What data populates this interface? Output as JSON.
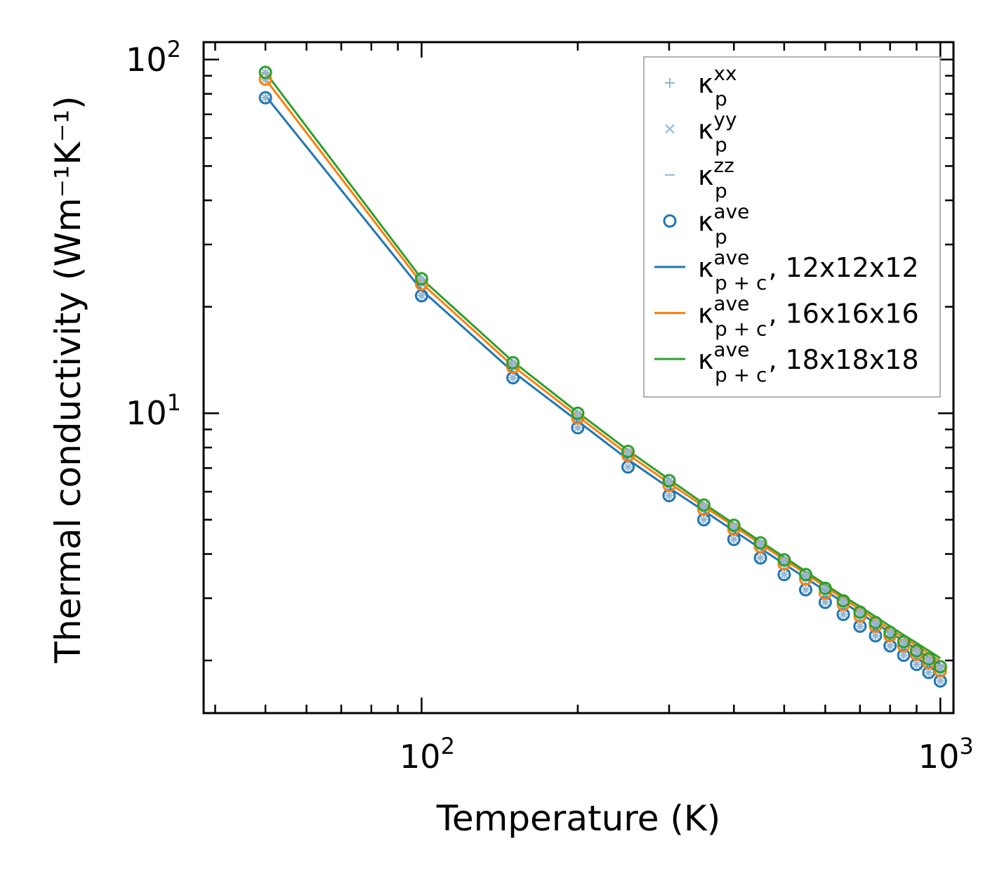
{
  "chart_data": {
    "type": "line",
    "xlabel": "Temperature (K)",
    "ylabel": "Thermal conductivity (Wm⁻¹K⁻¹)",
    "xscale": "log",
    "yscale": "log",
    "xlim": [
      38,
      1060
    ],
    "ylim": [
      1.42,
      112
    ],
    "x_ticks": [
      {
        "base": "10",
        "exp": "2"
      },
      {
        "base": "10",
        "exp": "3"
      }
    ],
    "y_ticks": [
      {
        "base": "10",
        "exp": "1"
      },
      {
        "base": "10",
        "exp": "2"
      }
    ],
    "legend_position": "top-right",
    "x": [
      50,
      100,
      150,
      200,
      250,
      300,
      350,
      400,
      450,
      500,
      550,
      600,
      650,
      700,
      750,
      800,
      850,
      900,
      950,
      1000
    ],
    "series": [
      {
        "name": "κ_p^ave 12x12x12",
        "kind": "markers",
        "color": "#1f77b4",
        "values": [
          78,
          21.5,
          12.6,
          9.1,
          7.05,
          5.85,
          5.0,
          4.4,
          3.9,
          3.5,
          3.17,
          2.92,
          2.7,
          2.5,
          2.35,
          2.2,
          2.07,
          1.95,
          1.85,
          1.75
        ]
      },
      {
        "name": "κ_p^ave 16x16x16",
        "kind": "markers",
        "color": "#ff7f0e",
        "values": [
          88,
          23.2,
          13.5,
          9.7,
          7.6,
          6.25,
          5.35,
          4.7,
          4.2,
          3.75,
          3.4,
          3.1,
          2.88,
          2.67,
          2.5,
          2.35,
          2.2,
          2.08,
          1.97,
          1.87
        ]
      },
      {
        "name": "κ_p^ave 18x18x18",
        "kind": "markers",
        "color": "#2ca02c",
        "values": [
          92,
          24.0,
          13.9,
          10.0,
          7.8,
          6.45,
          5.5,
          4.82,
          4.3,
          3.85,
          3.5,
          3.2,
          2.95,
          2.74,
          2.56,
          2.4,
          2.26,
          2.13,
          2.02,
          1.92
        ]
      },
      {
        "name": "κ_p+c^ave, 12x12x12",
        "kind": "line",
        "color": "#1f77b4",
        "values": [
          79,
          22.3,
          13.1,
          9.5,
          7.4,
          6.15,
          5.3,
          4.65,
          4.15,
          3.75,
          3.42,
          3.15,
          2.92,
          2.72,
          2.55,
          2.4,
          2.27,
          2.15,
          2.04,
          1.95
        ]
      },
      {
        "name": "κ_p+c^ave, 16x16x16",
        "kind": "line",
        "color": "#ff7f0e",
        "values": [
          88,
          23.3,
          13.6,
          9.8,
          7.65,
          6.35,
          5.45,
          4.8,
          4.27,
          3.86,
          3.52,
          3.23,
          2.99,
          2.79,
          2.61,
          2.45,
          2.32,
          2.2,
          2.09,
          1.99
        ]
      },
      {
        "name": "κ_p+c^ave, 18x18x18",
        "kind": "line",
        "color": "#2ca02c",
        "values": [
          92,
          24.0,
          14.0,
          10.05,
          7.85,
          6.5,
          5.55,
          4.87,
          4.34,
          3.92,
          3.57,
          3.28,
          3.04,
          2.84,
          2.66,
          2.5,
          2.36,
          2.24,
          2.13,
          2.03
        ]
      }
    ],
    "legend": [
      {
        "symbol": "+",
        "kind": "plus",
        "color": "#93b8d6",
        "sup": "xx",
        "sub": "p",
        "suffix": ""
      },
      {
        "symbol": "×",
        "kind": "cross",
        "color": "#93b8d6",
        "sup": "yy",
        "sub": "p",
        "suffix": ""
      },
      {
        "symbol": "–",
        "kind": "dash",
        "color": "#93b8d6",
        "sup": "zz",
        "sub": "p",
        "suffix": ""
      },
      {
        "symbol": "o",
        "kind": "circle",
        "color": "#1f77b4",
        "sup": "ave",
        "sub": "p",
        "suffix": ""
      },
      {
        "symbol": "line",
        "kind": "line",
        "color": "#1f77b4",
        "sup": "ave",
        "sub": "p + c",
        "suffix": ", 12x12x12"
      },
      {
        "symbol": "line",
        "kind": "line",
        "color": "#ff7f0e",
        "sup": "ave",
        "sub": "p + c",
        "suffix": ", 16x16x16"
      },
      {
        "symbol": "line",
        "kind": "line",
        "color": "#2ca02c",
        "sup": "ave",
        "sub": "p + c",
        "suffix": ", 18x18x18"
      }
    ],
    "legend_kappa": "κ"
  }
}
